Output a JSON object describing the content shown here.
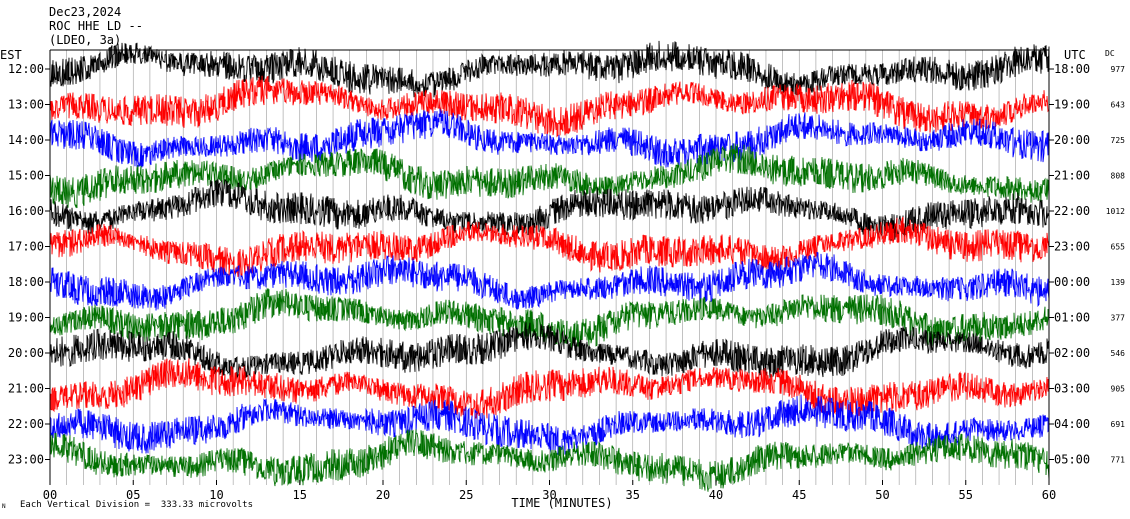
{
  "header": {
    "date": "Dec23,2024",
    "station": "ROC HHE LD --",
    "network": "(LDEO, 3a)"
  },
  "axes": {
    "left_unit": "EST",
    "right_unit": "UTC",
    "dc_label": "DC",
    "x_label": "TIME (MINUTES)"
  },
  "footer": {
    "scale_note": "Each Vertical Division =  333.33 microvolts",
    "mark": "N"
  },
  "colors": {
    "black": "#000000",
    "red": "#ff0000",
    "blue": "#0000ff",
    "green": "#007000",
    "background": "#ffffff"
  },
  "chart_data": {
    "type": "line",
    "title": "",
    "xlabel": "TIME (MINUTES)",
    "ylabel": "",
    "xlim": [
      0,
      60
    ],
    "x_ticks": [
      "00",
      "05",
      "10",
      "15",
      "20",
      "25",
      "30",
      "35",
      "40",
      "45",
      "50",
      "55",
      "60"
    ],
    "grid": "vertical",
    "color_cycle": [
      "black",
      "red",
      "blue",
      "green"
    ],
    "rows": [
      {
        "est": "12:00",
        "utc": "18:00",
        "dc": "977"
      },
      {
        "est": "13:00",
        "utc": "19:00",
        "dc": "643"
      },
      {
        "est": "14:00",
        "utc": "20:00",
        "dc": "725"
      },
      {
        "est": "15:00",
        "utc": "21:00",
        "dc": "808"
      },
      {
        "est": "16:00",
        "utc": "22:00",
        "dc": "1012"
      },
      {
        "est": "17:00",
        "utc": "23:00",
        "dc": "655"
      },
      {
        "est": "18:00",
        "utc": "00:00",
        "dc": "139"
      },
      {
        "est": "19:00",
        "utc": "01:00",
        "dc": "377"
      },
      {
        "est": "20:00",
        "utc": "02:00",
        "dc": "546"
      },
      {
        "est": "21:00",
        "utc": "03:00",
        "dc": "905"
      },
      {
        "est": "22:00",
        "utc": "04:00",
        "dc": "691"
      },
      {
        "est": "23:00",
        "utc": "05:00",
        "dc": "771"
      }
    ]
  }
}
